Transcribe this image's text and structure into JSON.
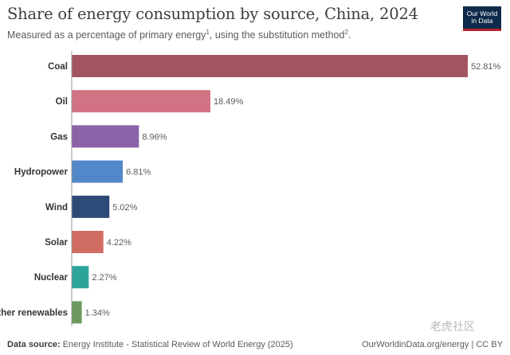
{
  "header": {
    "title": "Share of energy consumption by source, China, 2024",
    "subtitle_text": "Measured as a percentage of primary energy",
    "subtitle_sup1": "1",
    "subtitle_mid": ", using the substitution method",
    "subtitle_sup2": "2",
    "subtitle_end": "."
  },
  "logo": {
    "line1": "Our World",
    "line2": "in Data"
  },
  "footer": {
    "source_label": "Data source:",
    "source_text": "Energy Institute - Statistical Review of World Energy (2025)",
    "right_text": "OurWorldinData.org/energy | CC BY"
  },
  "watermark": "老虎社区",
  "chart_data": {
    "type": "bar",
    "orientation": "horizontal",
    "categories": [
      "Coal",
      "Oil",
      "Gas",
      "Hydropower",
      "Wind",
      "Solar",
      "Nuclear",
      "Other renewables"
    ],
    "values": [
      52.81,
      18.49,
      8.96,
      6.81,
      5.02,
      4.22,
      2.27,
      1.34
    ],
    "value_labels": [
      "52.81%",
      "18.49%",
      "8.96%",
      "6.81%",
      "5.02%",
      "4.22%",
      "2.27%",
      "1.34%"
    ],
    "colors": [
      "#a2555f",
      "#d27383",
      "#8c62a8",
      "#5288c9",
      "#2d4a78",
      "#d06d63",
      "#2da49a",
      "#6c9a5e"
    ],
    "xlim": [
      0,
      52.81
    ]
  }
}
